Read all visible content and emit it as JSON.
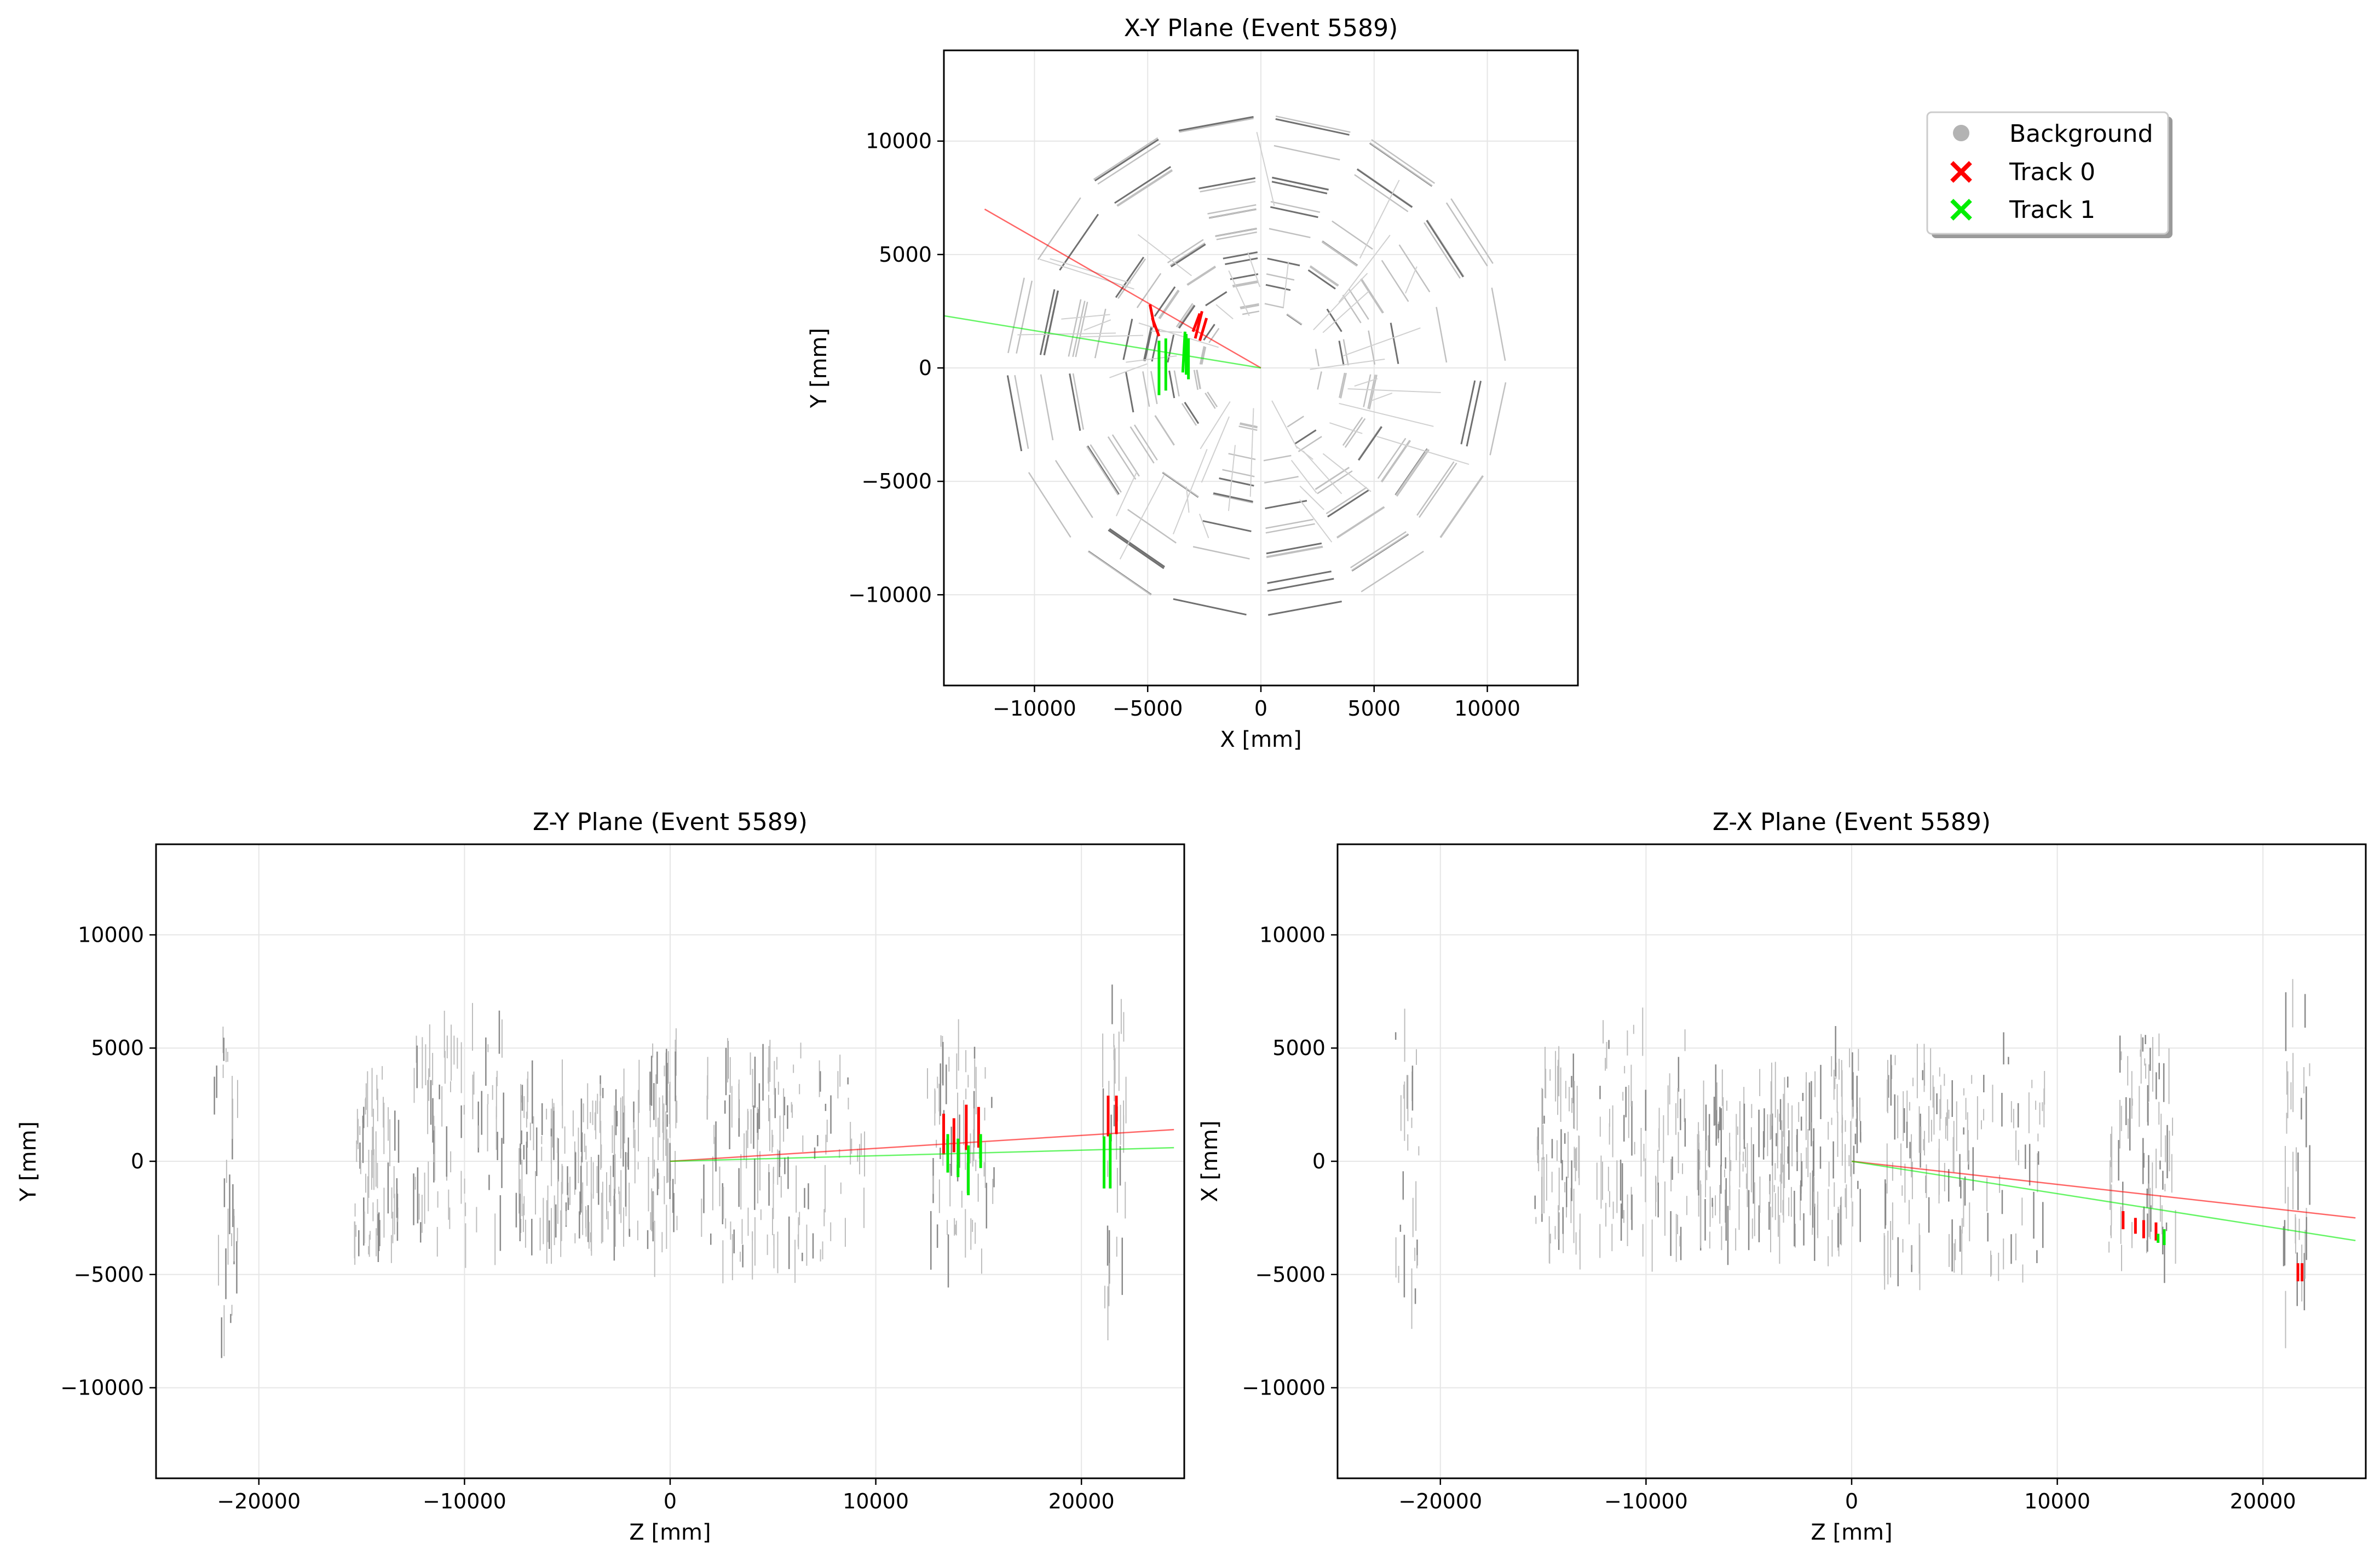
{
  "chart_data": [
    {
      "id": "xy",
      "type": "scatter",
      "title": "X-Y Plane (Event 5589)",
      "xlabel": "X [mm]",
      "ylabel": "Y [mm]",
      "xlim": [
        -14000,
        14000
      ],
      "ylim": [
        -14000,
        14000
      ],
      "xticks": [
        -10000,
        -5000,
        0,
        5000,
        10000
      ],
      "yticks": [
        -10000,
        -5000,
        0,
        5000,
        10000
      ],
      "grid": true,
      "series": [
        {
          "name": "Track 0",
          "color": "#ff0000",
          "line": [
            [
              0,
              0
            ],
            [
              -12200,
              7000
            ]
          ],
          "hits": [
            [
              -4700,
              1800,
              -4900,
              2800
            ],
            [
              -4500,
              1400,
              -4800,
              2200
            ],
            [
              -2900,
              1300,
              -2600,
              2500
            ],
            [
              -2700,
              1200,
              -2400,
              2200
            ],
            [
              -3000,
              1600,
              -2700,
              2400
            ]
          ]
        },
        {
          "name": "Track 1",
          "color": "#00ee00",
          "line": [
            [
              0,
              0
            ],
            [
              -14000,
              2300
            ]
          ],
          "hits": [
            [
              -4500,
              -1200,
              -4500,
              1200
            ],
            [
              -4200,
              -1000,
              -4200,
              1300
            ],
            [
              -3300,
              -300,
              -3300,
              1500
            ],
            [
              -3200,
              -500,
              -3200,
              1300
            ],
            [
              -3450,
              -200,
              -3350,
              1600
            ]
          ]
        }
      ],
      "background_geometry": {
        "rings": [
          2700,
          3900,
          5000,
          6100,
          7200,
          8400,
          9700,
          11000
        ],
        "sides": 16
      }
    },
    {
      "id": "zy",
      "type": "scatter",
      "title": "Z-Y Plane (Event 5589)",
      "xlabel": "Z [mm]",
      "ylabel": "Y [mm]",
      "xlim": [
        -25000,
        25000
      ],
      "ylim": [
        -14000,
        14000
      ],
      "xticks": [
        -20000,
        -10000,
        0,
        10000,
        20000
      ],
      "yticks": [
        -10000,
        -5000,
        0,
        5000,
        10000
      ],
      "grid": true,
      "series": [
        {
          "name": "Track 0",
          "color": "#ff0000",
          "line": [
            [
              0,
              0
            ],
            [
              24500,
              1400
            ]
          ],
          "hits": [
            [
              13300,
              300,
              13300,
              2100
            ],
            [
              13800,
              400,
              13800,
              1900
            ],
            [
              14400,
              500,
              14400,
              2500
            ],
            [
              15000,
              600,
              15000,
              2400
            ],
            [
              21300,
              1100,
              21300,
              2900
            ],
            [
              21700,
              1200,
              21700,
              2900
            ]
          ]
        },
        {
          "name": "Track 1",
          "color": "#00ee00",
          "line": [
            [
              0,
              0
            ],
            [
              24500,
              600
            ]
          ],
          "hits": [
            [
              13500,
              -500,
              13500,
              1200
            ],
            [
              14000,
              -700,
              14000,
              1000
            ],
            [
              14500,
              -1500,
              14500,
              700
            ],
            [
              15100,
              -300,
              15100,
              1200
            ],
            [
              21100,
              -1200,
              21100,
              1100
            ],
            [
              21400,
              -1200,
              21400,
              1200
            ]
          ]
        }
      ]
    },
    {
      "id": "zx",
      "type": "scatter",
      "title": "Z-X Plane (Event 5589)",
      "xlabel": "Z [mm]",
      "ylabel": "X [mm]",
      "xlim": [
        -25000,
        25000
      ],
      "ylim": [
        -14000,
        14000
      ],
      "xticks": [
        -20000,
        -10000,
        0,
        10000,
        20000
      ],
      "yticks": [
        -10000,
        -5000,
        0,
        5000,
        10000
      ],
      "grid": true,
      "series": [
        {
          "name": "Track 0",
          "color": "#ff0000",
          "line": [
            [
              0,
              0
            ],
            [
              24500,
              -2500
            ]
          ],
          "hits": [
            [
              13200,
              -2200,
              13200,
              -3000
            ],
            [
              13800,
              -2500,
              13800,
              -3200
            ],
            [
              14200,
              -2600,
              14200,
              -3400
            ],
            [
              14800,
              -2700,
              14800,
              -3500
            ],
            [
              21700,
              -4500,
              21700,
              -5300
            ],
            [
              21900,
              -4500,
              21900,
              -5300
            ]
          ]
        },
        {
          "name": "Track 1",
          "color": "#00ee00",
          "line": [
            [
              0,
              0
            ],
            [
              24500,
              -3500
            ]
          ],
          "hits": [
            [
              15200,
              -3000,
              15200,
              -3700
            ],
            [
              14900,
              -3200,
              14900,
              -3600
            ]
          ]
        }
      ]
    }
  ],
  "legend": {
    "placement": "upper-right-of-figure",
    "entries": [
      {
        "label": "Background",
        "marker": "dot",
        "color": "#b3b3b3"
      },
      {
        "label": "Track 0",
        "marker": "x",
        "color": "#ff0000"
      },
      {
        "label": "Track 1",
        "marker": "x",
        "color": "#00ee00"
      }
    ]
  }
}
